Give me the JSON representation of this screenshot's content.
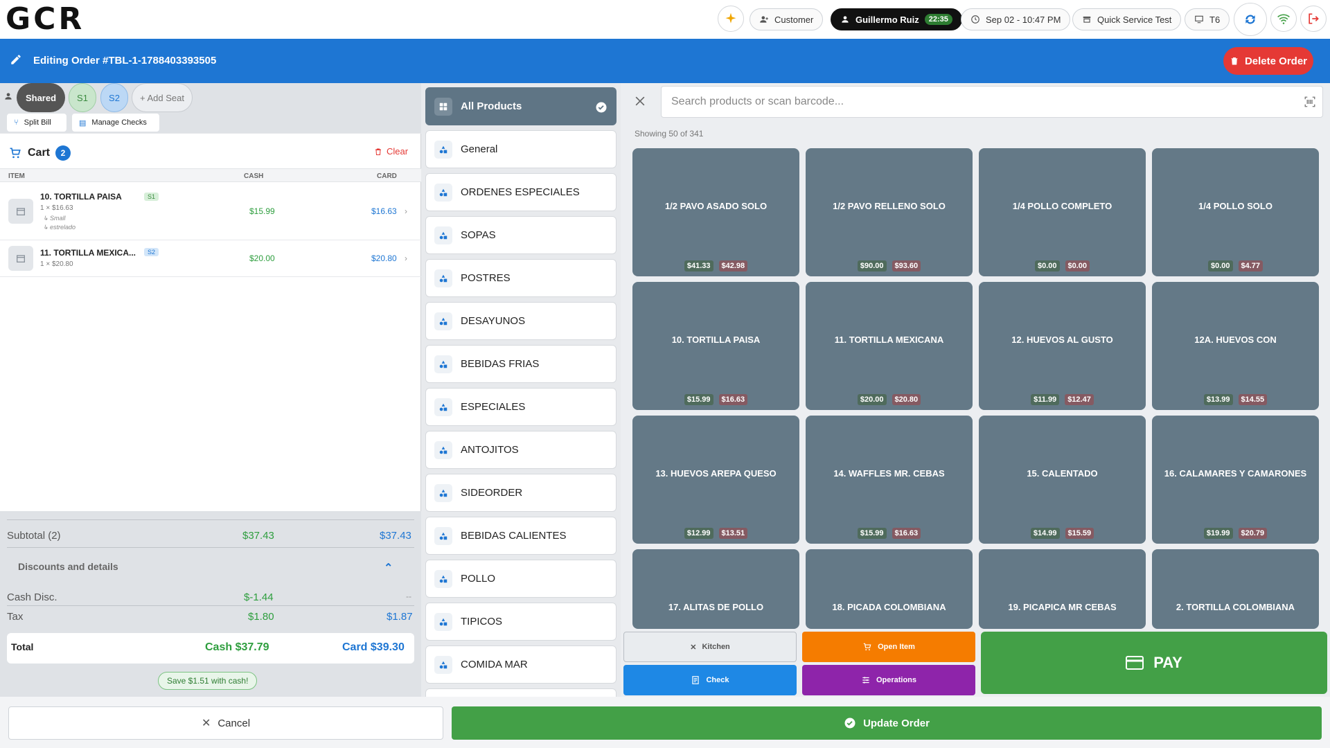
{
  "app": {
    "logo": "GCR"
  },
  "topbar": {
    "customer": "Customer",
    "user": "Guillermo Ruiz",
    "user_timer": "22:35",
    "datetime": "Sep 02 - 10:47 PM",
    "mode": "Quick Service Test",
    "terminal": "T6"
  },
  "order": {
    "title": "Editing Order #TBL-1-1788403393505",
    "delete_label": "Delete Order"
  },
  "seats": {
    "items": [
      "Shared",
      "S1",
      "S2"
    ],
    "add_label": "+ Add Seat",
    "split_label": "Split Bill",
    "manage_label": "Manage Checks"
  },
  "cart": {
    "title": "Cart",
    "count": "2",
    "clear_label": "Clear",
    "col_item": "ITEM",
    "col_cash": "CASH",
    "col_card": "CARD",
    "items": [
      {
        "name": "10. TORTILLA PAISA",
        "seat": "S1",
        "qty": "1 × $16.63",
        "mods": [
          "↳ Small",
          "↳ estrelado"
        ],
        "cash": "$15.99",
        "card": "$16.63"
      },
      {
        "name": "11. TORTILLA MEXICA...",
        "seat": "S2",
        "qty": "1 × $20.80",
        "mods": [],
        "cash": "$20.00",
        "card": "$20.80"
      }
    ]
  },
  "totals": {
    "subtotal_label": "Subtotal (2)",
    "subtotal_cash": "$37.43",
    "subtotal_card": "$37.43",
    "discounts_label": "Discounts and details",
    "cash_disc_label": "Cash Disc.",
    "cash_disc_cash": "$-1.44",
    "cash_disc_card": "--",
    "tax_label": "Tax",
    "tax_cash": "$1.80",
    "tax_card": "$1.87",
    "total_label": "Total",
    "total_cash": "Cash $37.79",
    "total_card": "Card $39.30",
    "save_label": "Save $1.51 with cash!"
  },
  "categories": [
    "All Products",
    "General",
    "ORDENES ESPECIALES",
    "SOPAS",
    "POSTRES",
    "DESAYUNOS",
    "BEBIDAS FRIAS",
    "ESPECIALES",
    "ANTOJITOS",
    "SIDEORDER",
    "BEBIDAS CALIENTES",
    "POLLO",
    "TIPICOS",
    "COMIDA MAR"
  ],
  "search": {
    "placeholder": "Search products or scan barcode..."
  },
  "showing": "Showing 50 of 341",
  "products": [
    {
      "name": "1/2 PAVO ASADO SOLO",
      "cash": "$41.33",
      "card": "$42.98"
    },
    {
      "name": "1/2 PAVO RELLENO SOLO",
      "cash": "$90.00",
      "card": "$93.60"
    },
    {
      "name": "1/4 POLLO COMPLETO",
      "cash": "$0.00",
      "card": "$0.00"
    },
    {
      "name": "1/4 POLLO SOLO",
      "cash": "$0.00",
      "card": "$4.77"
    },
    {
      "name": "10. TORTILLA PAISA",
      "cash": "$15.99",
      "card": "$16.63"
    },
    {
      "name": "11. TORTILLA MEXICANA",
      "cash": "$20.00",
      "card": "$20.80"
    },
    {
      "name": "12. HUEVOS AL GUSTO",
      "cash": "$11.99",
      "card": "$12.47"
    },
    {
      "name": "12A. HUEVOS CON",
      "cash": "$13.99",
      "card": "$14.55"
    },
    {
      "name": "13. HUEVOS AREPA QUESO",
      "cash": "$12.99",
      "card": "$13.51"
    },
    {
      "name": "14. WAFFLES  MR. CEBAS",
      "cash": "$15.99",
      "card": "$16.63"
    },
    {
      "name": "15. CALENTADO",
      "cash": "$14.99",
      "card": "$15.59"
    },
    {
      "name": "16. CALAMARES Y CAMARONES",
      "cash": "$19.99",
      "card": "$20.79"
    },
    {
      "name": "17. ALITAS  DE POLLO",
      "cash": "",
      "card": ""
    },
    {
      "name": "18. PICADA COLOMBIANA",
      "cash": "",
      "card": ""
    },
    {
      "name": "19. PICAPICA MR CEBAS",
      "cash": "",
      "card": ""
    },
    {
      "name": "2. TORTILLA COLOMBIANA",
      "cash": "",
      "card": ""
    }
  ],
  "actions": {
    "kitchen": "Kitchen",
    "open_item": "Open Item",
    "check": "Check",
    "operations": "Operations",
    "pay": "PAY"
  },
  "footer": {
    "cancel": "Cancel",
    "update": "Update Order"
  },
  "colors": {
    "primary": "#1e76d3",
    "danger": "#e53935",
    "success": "#43a047",
    "warning": "#f57c00",
    "purple": "#8e24aa",
    "tile": "#647987"
  },
  "icons": [
    "sparkle-icon",
    "person-add-icon",
    "person-icon",
    "clock-icon",
    "store-icon",
    "monitor-icon",
    "sync-icon",
    "wifi-icon",
    "logout-icon",
    "pencil-icon",
    "trash-icon",
    "cart-icon",
    "grid-icon",
    "shapes-icon",
    "check-circle-icon",
    "close-icon",
    "barcode-icon",
    "knife-fork-icon",
    "cart-plus-icon",
    "receipt-icon",
    "sliders-icon",
    "credit-card-icon"
  ]
}
